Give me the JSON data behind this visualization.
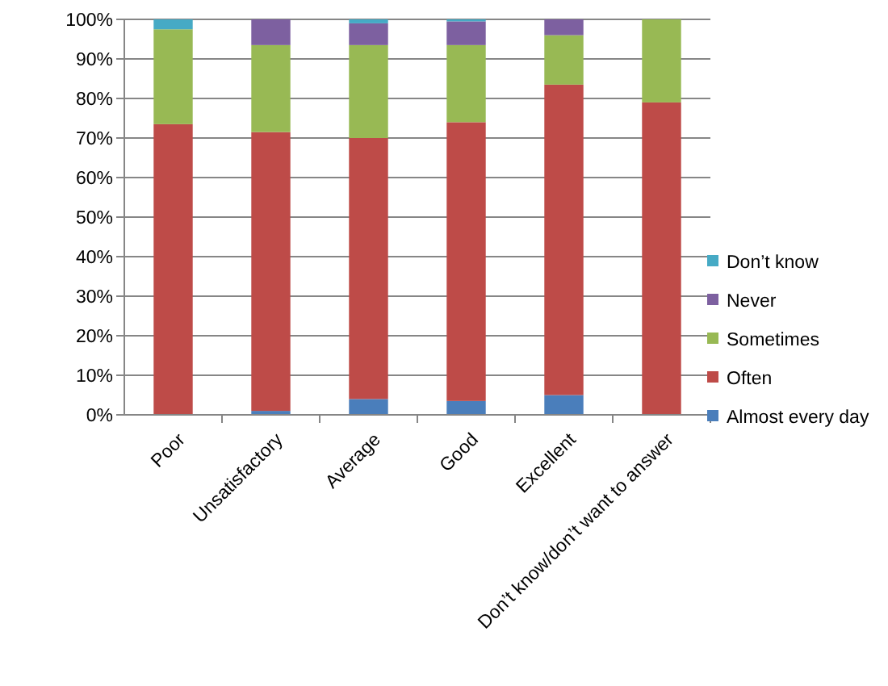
{
  "chart_data": {
    "type": "bar",
    "stacked": true,
    "categories": [
      "Poor",
      "Unsatisfactory",
      "Average",
      "Good",
      "Excellent",
      "Don’t know/don’t want to answer"
    ],
    "series": [
      {
        "name": "Almost every day",
        "color": "#4a7ebb",
        "values": [
          0,
          1,
          4,
          3.5,
          5,
          0
        ]
      },
      {
        "name": "Often",
        "color": "#be4b48",
        "values": [
          73.5,
          70.5,
          66,
          70.5,
          78.5,
          79
        ]
      },
      {
        "name": "Sometimes",
        "color": "#98b954",
        "values": [
          24,
          22,
          23.5,
          19.5,
          12.5,
          21
        ]
      },
      {
        "name": "Never",
        "color": "#7d60a0",
        "values": [
          0,
          6.5,
          5.5,
          6,
          4,
          0
        ]
      },
      {
        "name": "Don’t know",
        "color": "#46aac5",
        "values": [
          2.5,
          0,
          1,
          0.5,
          0,
          0
        ]
      }
    ],
    "ylim": [
      0,
      100
    ],
    "yticks": [
      {
        "value": 0,
        "label": "0%"
      },
      {
        "value": 10,
        "label": "10%"
      },
      {
        "value": 20,
        "label": "20%"
      },
      {
        "value": 30,
        "label": "30%"
      },
      {
        "value": 40,
        "label": "40%"
      },
      {
        "value": 50,
        "label": "50%"
      },
      {
        "value": 60,
        "label": "60%"
      },
      {
        "value": 70,
        "label": "70%"
      },
      {
        "value": 80,
        "label": "80%"
      },
      {
        "value": 90,
        "label": "90%"
      },
      {
        "value": 100,
        "label": "100%"
      }
    ],
    "grid": "y",
    "legend": "right"
  }
}
